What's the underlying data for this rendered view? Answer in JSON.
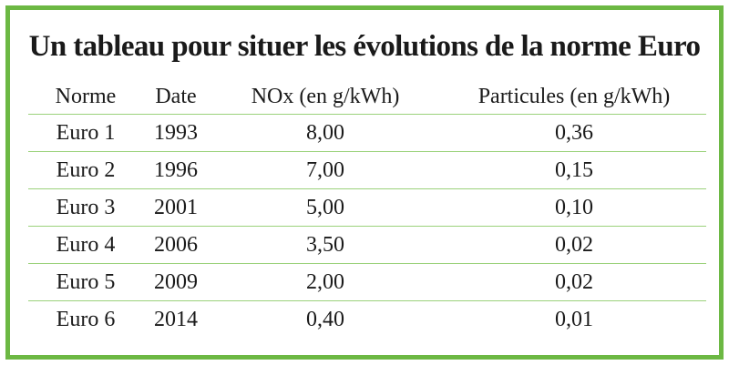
{
  "title": "Un tableau pour situer les évolutions de la norme Euro",
  "columns": {
    "norme": "Norme",
    "date": "Date",
    "nox": "NOx (en g/kWh)",
    "particules": "Particules (en g/kWh)"
  },
  "rows": [
    {
      "norme": "Euro 1",
      "date": "1993",
      "nox": "8,00",
      "particules": "0,36"
    },
    {
      "norme": "Euro 2",
      "date": "1996",
      "nox": "7,00",
      "particules": "0,15"
    },
    {
      "norme": "Euro 3",
      "date": "2001",
      "nox": "5,00",
      "particules": "0,10"
    },
    {
      "norme": "Euro 4",
      "date": "2006",
      "nox": "3,50",
      "particules": "0,02"
    },
    {
      "norme": "Euro 5",
      "date": "2009",
      "nox": "2,00",
      "particules": "0,02"
    },
    {
      "norme": "Euro 6",
      "date": "2014",
      "nox": "0,40",
      "particules": "0,01"
    }
  ],
  "colors": {
    "border": "#6cb843",
    "row_divider": "#9bd27b",
    "text": "#1a1a1a"
  }
}
